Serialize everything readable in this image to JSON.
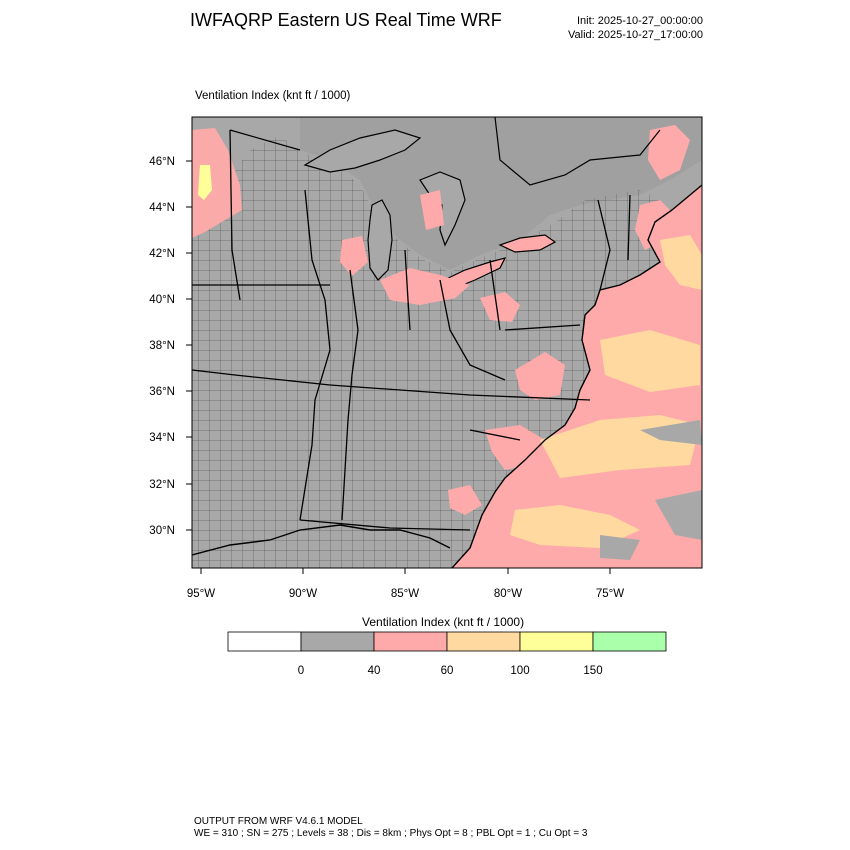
{
  "header": {
    "title": "IWFAQRP Eastern US Real Time WRF",
    "init": "Init: 2025-10-27_00:00:00",
    "valid": "Valid: 2025-10-27_17:00:00"
  },
  "map": {
    "field_title": "Ventilation Index   (knt ft / 1000)",
    "lat_ticks": [
      "46°N",
      "44°N",
      "42°N",
      "40°N",
      "38°N",
      "36°N",
      "34°N",
      "32°N",
      "30°N"
    ],
    "lon_ticks": [
      "95°W",
      "90°W",
      "85°W",
      "80°W",
      "75°W"
    ]
  },
  "colorbar": {
    "title": "Ventilation Index  (knt ft / 1000)",
    "labels": [
      "0",
      "40",
      "60",
      "100",
      "150"
    ],
    "colors": [
      "#ffffff",
      "#a8a8a8",
      "#ffaaaa",
      "#ffd9a0",
      "#ffff99",
      "#aaffaa"
    ]
  },
  "footer": {
    "line1": "OUTPUT FROM WRF V4.6.1 MODEL",
    "line2": "WE = 310 ; SN = 275 ; Levels = 38 ; Dis = 8km ; Phys Opt = 8 ; PBL Opt = 1 ; Cu Opt = 3"
  }
}
